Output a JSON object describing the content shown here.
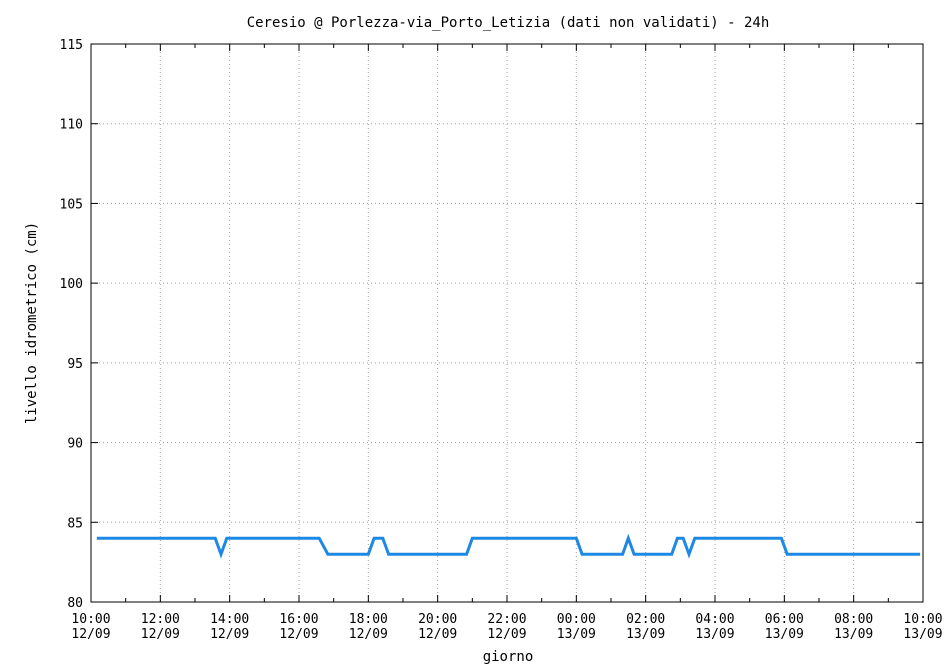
{
  "chart_data": {
    "type": "line",
    "title": "Ceresio @ Porlezza-via_Porto_Letizia (dati non validati) - 24h",
    "xlabel": "giorno",
    "ylabel": "livello idrometrico (cm)",
    "ylim": [
      80,
      115
    ],
    "yticks": [
      80,
      85,
      90,
      95,
      100,
      105,
      110,
      115
    ],
    "xlim_hours": [
      0,
      24
    ],
    "xticks": [
      {
        "time": "10:00",
        "date": "12/09"
      },
      {
        "time": "12:00",
        "date": "12/09"
      },
      {
        "time": "14:00",
        "date": "12/09"
      },
      {
        "time": "16:00",
        "date": "12/09"
      },
      {
        "time": "18:00",
        "date": "12/09"
      },
      {
        "time": "20:00",
        "date": "12/09"
      },
      {
        "time": "22:00",
        "date": "12/09"
      },
      {
        "time": "00:00",
        "date": "13/09"
      },
      {
        "time": "02:00",
        "date": "13/09"
      },
      {
        "time": "04:00",
        "date": "13/09"
      },
      {
        "time": "06:00",
        "date": "13/09"
      },
      {
        "time": "08:00",
        "date": "13/09"
      },
      {
        "time": "10:00",
        "date": "13/09"
      }
    ],
    "grid": true,
    "series": [
      {
        "color": "#1e88e5",
        "points": [
          [
            "10:10",
            84
          ],
          [
            "13:35",
            84
          ],
          [
            "13:45",
            83
          ],
          [
            "13:55",
            84
          ],
          [
            "16:35",
            84
          ],
          [
            "16:50",
            83
          ],
          [
            "18:00",
            83
          ],
          [
            "18:10",
            84
          ],
          [
            "18:25",
            84
          ],
          [
            "18:35",
            83
          ],
          [
            "20:50",
            83
          ],
          [
            "21:00",
            84
          ],
          [
            "00:00",
            84
          ],
          [
            "00:10",
            83
          ],
          [
            "01:20",
            83
          ],
          [
            "01:30",
            84
          ],
          [
            "01:40",
            83
          ],
          [
            "02:45",
            83
          ],
          [
            "02:55",
            84
          ],
          [
            "03:05",
            84
          ],
          [
            "03:15",
            83
          ],
          [
            "03:25",
            84
          ],
          [
            "05:55",
            84
          ],
          [
            "06:05",
            83
          ],
          [
            "09:55",
            83
          ]
        ]
      }
    ]
  }
}
